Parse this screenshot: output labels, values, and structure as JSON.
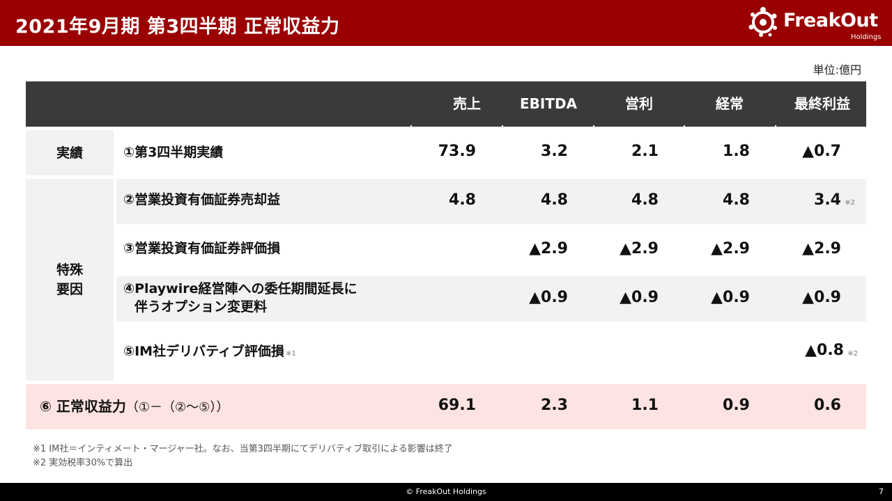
{
  "header": {
    "title": "2021年9月期 第3四半期 正常収益力"
  },
  "logo": {
    "name": "FreakOut",
    "sub": "Holdings"
  },
  "unit": "単位:億円",
  "columns": [
    "売上",
    "EBITDA",
    "営利",
    "経常",
    "最終利益"
  ],
  "groups": {
    "actual": "実績",
    "special": [
      "特殊",
      "要因"
    ]
  },
  "rows": [
    {
      "label": "①第3四半期実績",
      "values": [
        "73.9",
        "3.2",
        "2.1",
        "1.8",
        "▲0.7"
      ]
    },
    {
      "label": "②営業投資有価証券売却益",
      "values": [
        "4.8",
        "4.8",
        "4.8",
        "4.8",
        "3.4"
      ],
      "last_note": "※2"
    },
    {
      "label": "③営業投資有価証券評価損",
      "values": [
        "",
        "▲2.9",
        "▲2.9",
        "▲2.9",
        "▲2.9"
      ]
    },
    {
      "label_lines": [
        "④Playwire経営陣への委任期間延長に",
        "伴うオプション変更料"
      ],
      "values": [
        "",
        "▲0.9",
        "▲0.9",
        "▲0.9",
        "▲0.9"
      ]
    },
    {
      "label": "⑤IM社デリバティブ評価損",
      "label_note": "※1",
      "values": [
        "",
        "",
        "",
        "",
        "▲0.8"
      ],
      "last_note": "※2"
    }
  ],
  "summary": {
    "label": "⑥ 正常収益力",
    "formula": "（①－（②～⑤））",
    "values": [
      "69.1",
      "2.3",
      "1.1",
      "0.9",
      "0.6"
    ]
  },
  "footnotes": [
    "※1 IM社＝インティメート・マージャー社。なお、当第3四半期にてデリバティブ取引による影響は終了",
    "※2 実効税率30%で算出"
  ],
  "footer": {
    "copyright": "© FreakOut Holdings",
    "page": "7"
  },
  "colors": {
    "header": "#9a0000",
    "table_header": "#3a3a3a",
    "shade": "#f2f2f2",
    "summary": "#fde3e1"
  }
}
